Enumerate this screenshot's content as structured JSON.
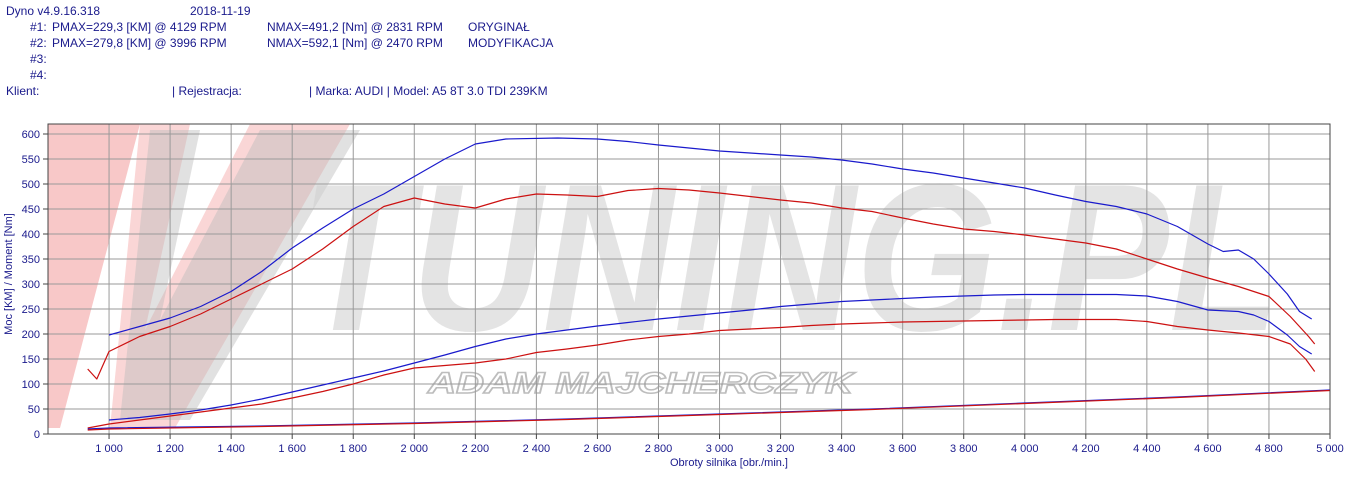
{
  "header": {
    "app_version": "Dyno v4.9.16.318",
    "date": "2018-11-19",
    "run1": {
      "id": "#1:",
      "pmax": "PMAX=229,3 [KM] @ 4129 RPM",
      "nmax": "NMAX=491,2 [Nm] @ 2831 RPM",
      "label": "ORYGINAŁ"
    },
    "run2": {
      "id": "#2:",
      "pmax": "PMAX=279,8 [KM] @ 3996 RPM",
      "nmax": "NMAX=592,1 [Nm] @ 2470 RPM",
      "label": "MODYFIKACJA"
    },
    "run3": {
      "id": "#3:"
    },
    "run4": {
      "id": "#4:"
    },
    "client_label": "Klient:",
    "registration_label": "| Rejestracja:",
    "vehicle": "| Marka: AUDI | Model: A5 8T 3.0 TDI 239KM"
  },
  "watermark": {
    "logo_text": "TUNING.PL",
    "subtitle": "ADAM MAJCHERCZYK"
  },
  "colors": {
    "original": "#cc1111",
    "modified": "#1a1acc",
    "loss": "#6b1a8a",
    "text": "#1a1a8c",
    "grid": "#9a9a9a"
  },
  "chart_data": {
    "type": "line",
    "xlabel": "Obroty silnika [obr./min.]",
    "ylabel": "Moc [KM] / Moment [Nm]",
    "xlim": [
      800,
      5000
    ],
    "ylim": [
      0,
      600
    ],
    "x_ticks": [
      1000,
      1200,
      1400,
      1600,
      1800,
      2000,
      2200,
      2400,
      2600,
      2800,
      3000,
      3200,
      3400,
      3600,
      3800,
      4000,
      4200,
      4400,
      4600,
      4800,
      5000
    ],
    "x_tick_labels": [
      "1 000",
      "1 200",
      "1 400",
      "1 600",
      "1 800",
      "2 000",
      "2 200",
      "2 400",
      "2 600",
      "2 800",
      "3 000",
      "3 200",
      "3 400",
      "3 600",
      "3 800",
      "4 000",
      "4 200",
      "4 400",
      "4 600",
      "4 800",
      "5 000"
    ],
    "y_ticks": [
      0,
      50,
      100,
      150,
      200,
      250,
      300,
      350,
      400,
      450,
      500,
      550,
      600
    ],
    "y_tick_labels": [
      "0",
      "50",
      "100",
      "150",
      "200",
      "250",
      "300",
      "350",
      "400",
      "450",
      "500",
      "550",
      "600"
    ],
    "grid": true,
    "series": [
      {
        "name": "ORYGINAŁ",
        "color": "#cc1111",
        "points": [
          [
            930,
            130
          ],
          [
            960,
            110
          ],
          [
            1000,
            165
          ],
          [
            1100,
            195
          ],
          [
            1200,
            215
          ],
          [
            1300,
            240
          ],
          [
            1400,
            270
          ],
          [
            1500,
            300
          ],
          [
            1600,
            330
          ],
          [
            1700,
            370
          ],
          [
            1800,
            415
          ],
          [
            1900,
            455
          ],
          [
            2000,
            472
          ],
          [
            2100,
            460
          ],
          [
            2200,
            452
          ],
          [
            2300,
            470
          ],
          [
            2400,
            480
          ],
          [
            2500,
            478
          ],
          [
            2600,
            475
          ],
          [
            2700,
            487
          ],
          [
            2800,
            491
          ],
          [
            2900,
            488
          ],
          [
            3000,
            482
          ],
          [
            3100,
            475
          ],
          [
            3200,
            468
          ],
          [
            3300,
            462
          ],
          [
            3400,
            452
          ],
          [
            3500,
            445
          ],
          [
            3600,
            432
          ],
          [
            3700,
            420
          ],
          [
            3800,
            410
          ],
          [
            3900,
            405
          ],
          [
            4000,
            398
          ],
          [
            4100,
            390
          ],
          [
            4200,
            382
          ],
          [
            4300,
            370
          ],
          [
            4400,
            350
          ],
          [
            4500,
            330
          ],
          [
            4600,
            312
          ],
          [
            4700,
            295
          ],
          [
            4800,
            275
          ],
          [
            4870,
            235
          ],
          [
            4930,
            195
          ],
          [
            4950,
            180
          ]
        ]
      },
      {
        "name": "MODYFIKACJA",
        "color": "#1a1acc",
        "points": [
          [
            1000,
            198
          ],
          [
            1100,
            215
          ],
          [
            1200,
            232
          ],
          [
            1300,
            255
          ],
          [
            1400,
            285
          ],
          [
            1500,
            325
          ],
          [
            1600,
            372
          ],
          [
            1700,
            412
          ],
          [
            1800,
            450
          ],
          [
            1900,
            480
          ],
          [
            2000,
            515
          ],
          [
            2100,
            550
          ],
          [
            2200,
            580
          ],
          [
            2300,
            590
          ],
          [
            2470,
            592
          ],
          [
            2600,
            590
          ],
          [
            2700,
            585
          ],
          [
            2800,
            578
          ],
          [
            2900,
            572
          ],
          [
            3000,
            566
          ],
          [
            3100,
            562
          ],
          [
            3200,
            558
          ],
          [
            3300,
            554
          ],
          [
            3400,
            548
          ],
          [
            3500,
            540
          ],
          [
            3600,
            530
          ],
          [
            3700,
            522
          ],
          [
            3800,
            512
          ],
          [
            3900,
            502
          ],
          [
            4000,
            492
          ],
          [
            4100,
            478
          ],
          [
            4200,
            465
          ],
          [
            4300,
            455
          ],
          [
            4400,
            440
          ],
          [
            4500,
            415
          ],
          [
            4600,
            380
          ],
          [
            4650,
            365
          ],
          [
            4700,
            368
          ],
          [
            4750,
            350
          ],
          [
            4800,
            320
          ],
          [
            4860,
            280
          ],
          [
            4900,
            245
          ],
          [
            4940,
            230
          ]
        ]
      },
      {
        "name": "ORYGINAŁ moc",
        "color": "#cc1111",
        "points": [
          [
            930,
            12
          ],
          [
            1000,
            20
          ],
          [
            1100,
            28
          ],
          [
            1200,
            36
          ],
          [
            1300,
            44
          ],
          [
            1400,
            52
          ],
          [
            1500,
            60
          ],
          [
            1600,
            72
          ],
          [
            1700,
            85
          ],
          [
            1800,
            100
          ],
          [
            1900,
            118
          ],
          [
            2000,
            132
          ],
          [
            2100,
            137
          ],
          [
            2200,
            142
          ],
          [
            2300,
            150
          ],
          [
            2400,
            163
          ],
          [
            2500,
            170
          ],
          [
            2600,
            178
          ],
          [
            2700,
            188
          ],
          [
            2800,
            195
          ],
          [
            2900,
            200
          ],
          [
            3000,
            207
          ],
          [
            3100,
            210
          ],
          [
            3200,
            213
          ],
          [
            3300,
            217
          ],
          [
            3400,
            220
          ],
          [
            3500,
            222
          ],
          [
            3600,
            224
          ],
          [
            3700,
            225
          ],
          [
            3800,
            226
          ],
          [
            3900,
            227
          ],
          [
            4000,
            228
          ],
          [
            4100,
            229
          ],
          [
            4200,
            229
          ],
          [
            4300,
            229
          ],
          [
            4400,
            225
          ],
          [
            4500,
            215
          ],
          [
            4600,
            208
          ],
          [
            4700,
            202
          ],
          [
            4800,
            195
          ],
          [
            4870,
            180
          ],
          [
            4920,
            150
          ],
          [
            4950,
            125
          ]
        ]
      },
      {
        "name": "MODYFIKACJA moc",
        "color": "#1a1acc",
        "points": [
          [
            1000,
            28
          ],
          [
            1100,
            33
          ],
          [
            1200,
            40
          ],
          [
            1300,
            48
          ],
          [
            1400,
            58
          ],
          [
            1500,
            70
          ],
          [
            1600,
            84
          ],
          [
            1700,
            98
          ],
          [
            1800,
            112
          ],
          [
            1900,
            126
          ],
          [
            2000,
            142
          ],
          [
            2100,
            158
          ],
          [
            2200,
            175
          ],
          [
            2300,
            190
          ],
          [
            2400,
            200
          ],
          [
            2500,
            208
          ],
          [
            2600,
            216
          ],
          [
            2700,
            223
          ],
          [
            2800,
            230
          ],
          [
            2900,
            236
          ],
          [
            3000,
            242
          ],
          [
            3100,
            248
          ],
          [
            3200,
            255
          ],
          [
            3300,
            260
          ],
          [
            3400,
            265
          ],
          [
            3500,
            268
          ],
          [
            3600,
            271
          ],
          [
            3700,
            274
          ],
          [
            3800,
            276
          ],
          [
            3900,
            278
          ],
          [
            4000,
            279
          ],
          [
            4100,
            279
          ],
          [
            4200,
            279
          ],
          [
            4300,
            279
          ],
          [
            4400,
            276
          ],
          [
            4500,
            265
          ],
          [
            4600,
            248
          ],
          [
            4700,
            245
          ],
          [
            4750,
            238
          ],
          [
            4800,
            225
          ],
          [
            4860,
            198
          ],
          [
            4900,
            175
          ],
          [
            4940,
            160
          ]
        ]
      },
      {
        "name": "",
        "color": "#1a1acc",
        "points": [
          [
            930,
            10
          ],
          [
            1000,
            12
          ],
          [
            1500,
            16
          ],
          [
            2000,
            22
          ],
          [
            2500,
            30
          ],
          [
            3000,
            40
          ],
          [
            3500,
            50
          ],
          [
            4000,
            62
          ],
          [
            4500,
            74
          ],
          [
            5000,
            88
          ]
        ]
      },
      {
        "name": "",
        "color": "#cc1111",
        "points": [
          [
            930,
            8
          ],
          [
            1000,
            10
          ],
          [
            1500,
            15
          ],
          [
            2000,
            21
          ],
          [
            2500,
            29
          ],
          [
            3000,
            39
          ],
          [
            3500,
            49
          ],
          [
            4000,
            61
          ],
          [
            4500,
            73
          ],
          [
            5000,
            87
          ]
        ]
      }
    ]
  }
}
